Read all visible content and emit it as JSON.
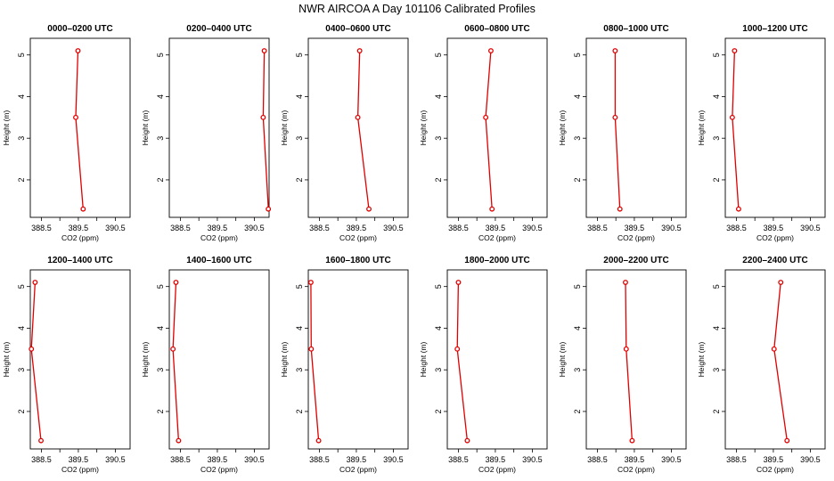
{
  "figure_title": "NWR AIRCOA A  Day 101106  Calibrated Profiles",
  "chart_data": [
    {
      "type": "line",
      "title": "0000–0200 UTC",
      "xlabel": "CO2 (ppm)",
      "ylabel": "Height (m)",
      "xlim": [
        388.2,
        390.9
      ],
      "ylim": [
        1.1,
        5.4
      ],
      "xticks": [
        388.5,
        389.5,
        390.5
      ],
      "xtick_labels": [
        "388.5",
        "389.5",
        "390.5"
      ],
      "yticks": [
        2,
        3,
        4,
        5
      ],
      "ytick_labels": [
        "2",
        "3",
        "4",
        "5"
      ],
      "series": [
        {
          "x": [
            389.63,
            389.43,
            389.49
          ],
          "y": [
            1.3,
            3.5,
            5.1
          ]
        }
      ]
    },
    {
      "type": "line",
      "title": "0200–0400 UTC",
      "xlabel": "CO2 (ppm)",
      "ylabel": "Height (m)",
      "xlim": [
        388.2,
        390.9
      ],
      "ylim": [
        1.1,
        5.4
      ],
      "xticks": [
        388.5,
        389.5,
        390.5
      ],
      "xtick_labels": [
        "388.5",
        "389.5",
        "390.5"
      ],
      "yticks": [
        2,
        3,
        4,
        5
      ],
      "ytick_labels": [
        "2",
        "3",
        "4",
        "5"
      ],
      "series": [
        {
          "x": [
            390.88,
            390.74,
            390.77
          ],
          "y": [
            1.3,
            3.5,
            5.1
          ]
        }
      ]
    },
    {
      "type": "line",
      "title": "0400–0600 UTC",
      "xlabel": "CO2 (ppm)",
      "ylabel": "Height (m)",
      "xlim": [
        388.2,
        390.9
      ],
      "ylim": [
        1.1,
        5.4
      ],
      "xticks": [
        388.5,
        389.5,
        390.5
      ],
      "xtick_labels": [
        "388.5",
        "389.5",
        "390.5"
      ],
      "yticks": [
        2,
        3,
        4,
        5
      ],
      "ytick_labels": [
        "2",
        "3",
        "4",
        "5"
      ],
      "series": [
        {
          "x": [
            389.84,
            389.54,
            389.59
          ],
          "y": [
            1.3,
            3.5,
            5.1
          ]
        }
      ]
    },
    {
      "type": "line",
      "title": "0600–0800 UTC",
      "xlabel": "CO2 (ppm)",
      "ylabel": "Height (m)",
      "xlim": [
        388.2,
        390.9
      ],
      "ylim": [
        1.1,
        5.4
      ],
      "xticks": [
        388.5,
        389.5,
        390.5
      ],
      "xtick_labels": [
        "388.5",
        "389.5",
        "390.5"
      ],
      "yticks": [
        2,
        3,
        4,
        5
      ],
      "ytick_labels": [
        "2",
        "3",
        "4",
        "5"
      ],
      "series": [
        {
          "x": [
            389.41,
            389.24,
            389.38
          ],
          "y": [
            1.3,
            3.5,
            5.1
          ]
        }
      ]
    },
    {
      "type": "line",
      "title": "0800–1000 UTC",
      "xlabel": "CO2 (ppm)",
      "ylabel": "Height (m)",
      "xlim": [
        388.2,
        390.9
      ],
      "ylim": [
        1.1,
        5.4
      ],
      "xticks": [
        388.5,
        389.5,
        390.5
      ],
      "xtick_labels": [
        "388.5",
        "389.5",
        "390.5"
      ],
      "yticks": [
        2,
        3,
        4,
        5
      ],
      "ytick_labels": [
        "2",
        "3",
        "4",
        "5"
      ],
      "series": [
        {
          "x": [
            389.11,
            388.98,
            388.98
          ],
          "y": [
            1.3,
            3.5,
            5.1
          ]
        }
      ]
    },
    {
      "type": "line",
      "title": "1000–1200 UTC",
      "xlabel": "CO2 (ppm)",
      "ylabel": "Height (m)",
      "xlim": [
        388.2,
        390.9
      ],
      "ylim": [
        1.1,
        5.4
      ],
      "xticks": [
        388.5,
        389.5,
        390.5
      ],
      "xtick_labels": [
        "388.5",
        "389.5",
        "390.5"
      ],
      "yticks": [
        2,
        3,
        4,
        5
      ],
      "ytick_labels": [
        "2",
        "3",
        "4",
        "5"
      ],
      "series": [
        {
          "x": [
            388.56,
            388.39,
            388.45
          ],
          "y": [
            1.3,
            3.5,
            5.1
          ]
        }
      ]
    },
    {
      "type": "line",
      "title": "1200–1400 UTC",
      "xlabel": "CO2 (ppm)",
      "ylabel": "Height (m)",
      "xlim": [
        388.2,
        390.9
      ],
      "ylim": [
        1.1,
        5.4
      ],
      "xticks": [
        388.5,
        389.5,
        390.5
      ],
      "xtick_labels": [
        "388.5",
        "389.5",
        "390.5"
      ],
      "yticks": [
        2,
        3,
        4,
        5
      ],
      "ytick_labels": [
        "2",
        "3",
        "4",
        "5"
      ],
      "series": [
        {
          "x": [
            388.49,
            388.23,
            388.33
          ],
          "y": [
            1.3,
            3.5,
            5.1
          ]
        }
      ]
    },
    {
      "type": "line",
      "title": "1400–1600 UTC",
      "xlabel": "CO2 (ppm)",
      "ylabel": "Height (m)",
      "xlim": [
        388.2,
        390.9
      ],
      "ylim": [
        1.1,
        5.4
      ],
      "xticks": [
        388.5,
        389.5,
        390.5
      ],
      "xtick_labels": [
        "388.5",
        "389.5",
        "390.5"
      ],
      "yticks": [
        2,
        3,
        4,
        5
      ],
      "ytick_labels": [
        "2",
        "3",
        "4",
        "5"
      ],
      "series": [
        {
          "x": [
            388.45,
            388.3,
            388.38
          ],
          "y": [
            1.3,
            3.5,
            5.1
          ]
        }
      ]
    },
    {
      "type": "line",
      "title": "1600–1800 UTC",
      "xlabel": "CO2 (ppm)",
      "ylabel": "Height (m)",
      "xlim": [
        388.2,
        390.9
      ],
      "ylim": [
        1.1,
        5.4
      ],
      "xticks": [
        388.5,
        389.5,
        390.5
      ],
      "xtick_labels": [
        "388.5",
        "389.5",
        "390.5"
      ],
      "yticks": [
        2,
        3,
        4,
        5
      ],
      "ytick_labels": [
        "2",
        "3",
        "4",
        "5"
      ],
      "series": [
        {
          "x": [
            388.48,
            388.28,
            388.27
          ],
          "y": [
            1.3,
            3.5,
            5.1
          ]
        }
      ]
    },
    {
      "type": "line",
      "title": "1800–2000 UTC",
      "xlabel": "CO2 (ppm)",
      "ylabel": "Height (m)",
      "xlim": [
        388.2,
        390.9
      ],
      "ylim": [
        1.1,
        5.4
      ],
      "xticks": [
        388.5,
        389.5,
        390.5
      ],
      "xtick_labels": [
        "388.5",
        "389.5",
        "390.5"
      ],
      "yticks": [
        2,
        3,
        4,
        5
      ],
      "ytick_labels": [
        "2",
        "3",
        "4",
        "5"
      ],
      "series": [
        {
          "x": [
            388.74,
            388.47,
            388.5
          ],
          "y": [
            1.3,
            3.5,
            5.1
          ]
        }
      ]
    },
    {
      "type": "line",
      "title": "2000–2200 UTC",
      "xlabel": "CO2 (ppm)",
      "ylabel": "Height (m)",
      "xlim": [
        388.2,
        390.9
      ],
      "ylim": [
        1.1,
        5.4
      ],
      "xticks": [
        388.5,
        389.5,
        390.5
      ],
      "xtick_labels": [
        "388.5",
        "389.5",
        "390.5"
      ],
      "yticks": [
        2,
        3,
        4,
        5
      ],
      "ytick_labels": [
        "2",
        "3",
        "4",
        "5"
      ],
      "series": [
        {
          "x": [
            389.44,
            389.28,
            389.26
          ],
          "y": [
            1.3,
            3.5,
            5.1
          ]
        }
      ]
    },
    {
      "type": "line",
      "title": "2200–2400 UTC",
      "xlabel": "CO2 (ppm)",
      "ylabel": "Height (m)",
      "xlim": [
        388.2,
        390.9
      ],
      "ylim": [
        1.1,
        5.4
      ],
      "xticks": [
        388.5,
        389.5,
        390.5
      ],
      "xtick_labels": [
        "388.5",
        "389.5",
        "390.5"
      ],
      "yticks": [
        2,
        3,
        4,
        5
      ],
      "ytick_labels": [
        "2",
        "3",
        "4",
        "5"
      ],
      "series": [
        {
          "x": [
            389.87,
            389.52,
            389.7
          ],
          "y": [
            1.3,
            3.5,
            5.1
          ]
        }
      ]
    }
  ]
}
